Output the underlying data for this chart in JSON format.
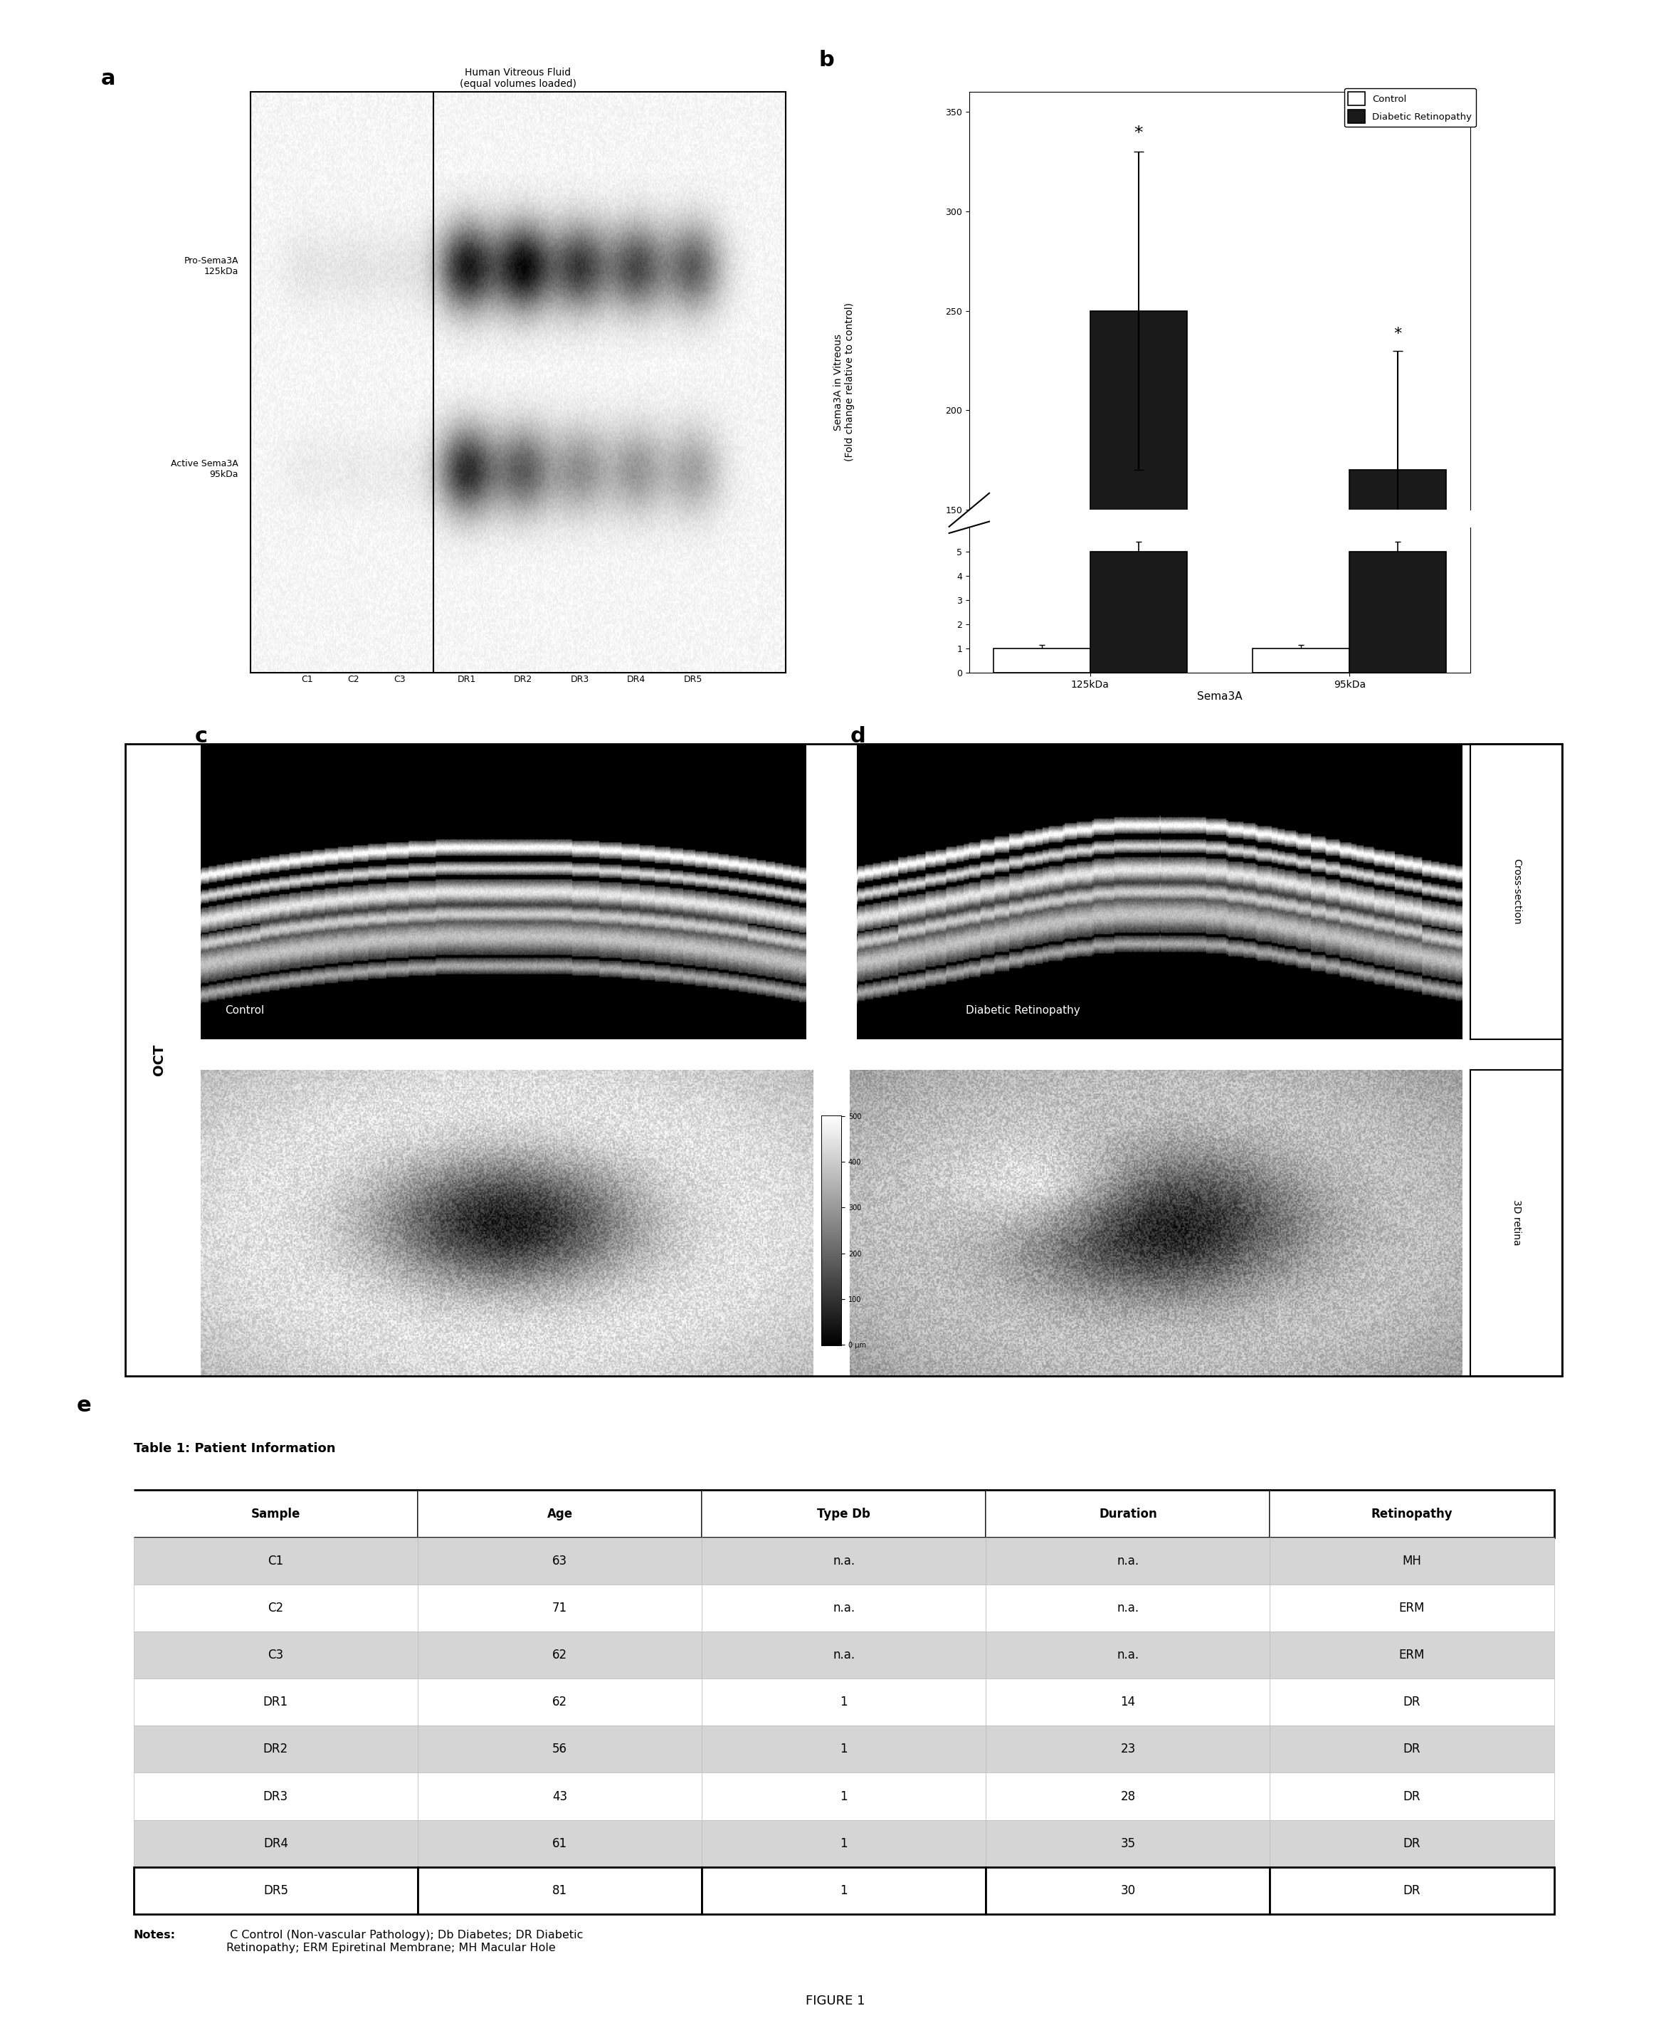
{
  "panel_b": {
    "groups": [
      "125kDa",
      "95kDa"
    ],
    "control_values": [
      1.0,
      1.0
    ],
    "dr_values": [
      250.0,
      170.0
    ],
    "control_errors": [
      0.5,
      0.5
    ],
    "dr_errors": [
      80.0,
      60.0
    ],
    "dr_lower_values": [
      5.0,
      5.0
    ],
    "dr_lower_errors": [
      0.4,
      0.4
    ],
    "control_lower_values": [
      1.0,
      1.0
    ],
    "control_lower_errors": [
      0.15,
      0.15
    ],
    "ylim_upper": [
      150,
      360
    ],
    "ylim_lower": [
      0,
      6
    ],
    "yticks_upper": [
      150,
      200,
      250,
      300,
      350
    ],
    "yticks_lower": [
      0,
      1,
      2,
      3,
      4,
      5
    ],
    "ylabel": "Sema3A in Vitreous\n(Fold change relative to control)",
    "xlabel": "Sema3A",
    "legend_labels": [
      "Control",
      "Diabetic Retinopathy"
    ],
    "bar_width": 0.28,
    "x_positions": [
      0.0,
      0.75
    ],
    "control_color": "#ffffff",
    "dr_color": "#1a1a1a",
    "bar_edge_color": "#000000"
  },
  "table": {
    "title": "Table 1: Patient Information",
    "columns": [
      "Sample",
      "Age",
      "Type Db",
      "Duration",
      "Retinopathy"
    ],
    "rows": [
      [
        "C1",
        "63",
        "n.a.",
        "n.a.",
        "MH"
      ],
      [
        "C2",
        "71",
        "n.a.",
        "n.a.",
        "ERM"
      ],
      [
        "C3",
        "62",
        "n.a.",
        "n.a.",
        "ERM"
      ],
      [
        "DR1",
        "62",
        "1",
        "14",
        "DR"
      ],
      [
        "DR2",
        "56",
        "1",
        "23",
        "DR"
      ],
      [
        "DR3",
        "43",
        "1",
        "28",
        "DR"
      ],
      [
        "DR4",
        "61",
        "1",
        "35",
        "DR"
      ],
      [
        "DR5",
        "81",
        "1",
        "30",
        "DR"
      ]
    ],
    "shaded_rows": [
      1,
      3,
      5,
      7
    ],
    "shade_color": "#d5d5d5",
    "notes_bold": "Notes:",
    "notes_regular": " C Control (Non-vascular Pathology); Db Diabetes; DR Diabetic\nRetinopathy; ERM Epiretinal Membrane; MH Macular Hole"
  },
  "figure_label": "FIGURE 1",
  "wb_title": "Human Vitreous Fluid\n(equal volumes loaded)",
  "wb_band1_label": "Pro-Sema3A\n125kDa",
  "wb_band2_label": "Active Sema3A\n95kDa",
  "wb_sample_labels": [
    "C1",
    "C2",
    "C3",
    "DR1",
    "DR2",
    "DR3",
    "DR4",
    "DR5"
  ],
  "wb_group_control": "Control",
  "wb_group_dr": "Diabetic Retinopathy",
  "oct_label_c": "Control",
  "oct_label_d": "Diabetic Retinopathy",
  "oct_side_label": "OCT",
  "cross_section_label": "Cross-section",
  "retina_3d_label": "3D retina",
  "colorbar_ticks": [
    "500",
    "400",
    "300",
    "200",
    "100",
    "0 μm"
  ]
}
